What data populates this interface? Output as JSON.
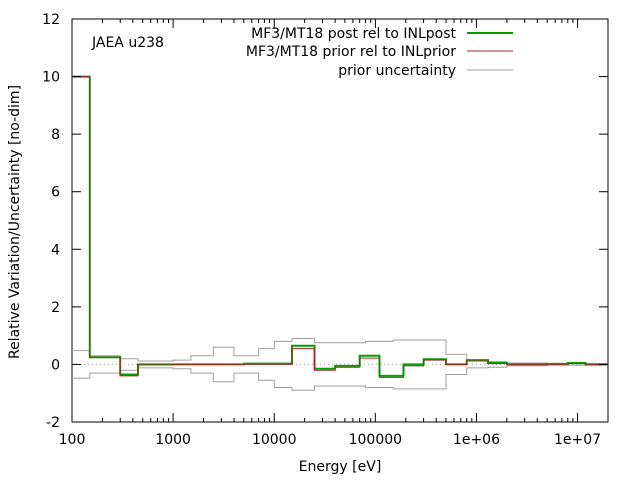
{
  "chart_data": {
    "type": "line",
    "title": "",
    "annotation": "JAEA u238",
    "xlabel": "Energy [eV]",
    "ylabel": "Relative Variation/Uncertainty [no-dim]",
    "xscale": "log",
    "xlim": [
      100,
      20000000
    ],
    "ylim": [
      -2,
      12
    ],
    "xticks": [
      {
        "value": 100,
        "label": "100"
      },
      {
        "value": 1000,
        "label": "1000"
      },
      {
        "value": 10000,
        "label": "10000"
      },
      {
        "value": 100000,
        "label": "100000"
      },
      {
        "value": 1000000,
        "label": "1e+06"
      },
      {
        "value": 10000000,
        "label": "1e+07"
      }
    ],
    "yticks": [
      {
        "value": -2,
        "label": "-2"
      },
      {
        "value": 0,
        "label": "0"
      },
      {
        "value": 2,
        "label": "2"
      },
      {
        "value": 4,
        "label": "4"
      },
      {
        "value": 6,
        "label": "6"
      },
      {
        "value": 8,
        "label": "8"
      },
      {
        "value": 10,
        "label": "10"
      },
      {
        "value": 12,
        "label": "12"
      }
    ],
    "grid": false,
    "legend_position": "top-right",
    "series": [
      {
        "name": "MF3/MT18 post rel to INLpost",
        "color": "#00a000",
        "style": "step",
        "edges": [
          100,
          150,
          300,
          450,
          1000,
          2500,
          5000,
          15000,
          25000,
          40000,
          70000,
          110000,
          190000,
          300000,
          500000,
          800000,
          1300000,
          2000000,
          5000000,
          8000000,
          12000000,
          20000000
        ],
        "values": [
          10.0,
          0.25,
          -0.35,
          0.0,
          0.0,
          0.0,
          0.03,
          0.65,
          -0.15,
          -0.05,
          0.3,
          -0.4,
          0.0,
          0.18,
          0.0,
          0.15,
          0.05,
          0.0,
          0.02,
          0.05,
          0.0
        ]
      },
      {
        "name": "MF3/MT18 prior rel to INLprior",
        "color": "#a52a2a",
        "style": "step",
        "edges": [
          100,
          150,
          300,
          450,
          1000,
          2500,
          5000,
          15000,
          25000,
          40000,
          70000,
          110000,
          190000,
          300000,
          500000,
          800000,
          1300000,
          2000000,
          5000000,
          8000000,
          12000000,
          20000000
        ],
        "values": [
          10.0,
          0.25,
          -0.4,
          -0.02,
          0.0,
          0.0,
          0.0,
          0.55,
          -0.2,
          -0.1,
          0.22,
          -0.45,
          -0.05,
          0.15,
          0.0,
          0.12,
          0.03,
          0.0,
          0.0,
          0.03,
          0.0
        ]
      },
      {
        "name": "prior uncertainty",
        "color": "#a0a0a0",
        "style": "step-band",
        "edges": [
          100,
          150,
          300,
          450,
          700,
          1000,
          1500,
          2500,
          4000,
          7000,
          10000,
          15000,
          25000,
          45000,
          80000,
          150000,
          300000,
          500000,
          800000,
          1300000,
          2000000,
          5000000,
          20000000
        ],
        "values": [
          0.48,
          0.3,
          0.2,
          0.12,
          0.12,
          0.15,
          0.3,
          0.6,
          0.3,
          0.55,
          0.8,
          0.9,
          0.75,
          0.75,
          0.8,
          0.85,
          0.85,
          0.35,
          0.12,
          0.1,
          0.05,
          0.03
        ]
      }
    ]
  }
}
